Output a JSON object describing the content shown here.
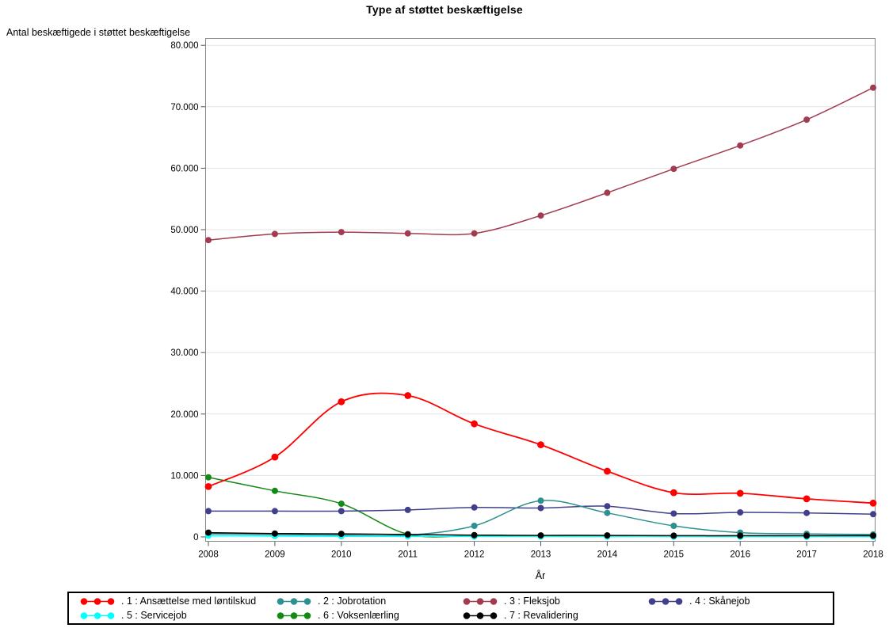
{
  "page": {
    "title": "Type af støttet beskæftigelse"
  },
  "axes": {
    "y_label": "Antal beskæftigede i støttet beskæftigelse",
    "x_label": "År",
    "y_ticks": [
      {
        "value": 0,
        "label": "0"
      },
      {
        "value": 10000,
        "label": "10.000"
      },
      {
        "value": 20000,
        "label": "20.000"
      },
      {
        "value": 30000,
        "label": "30.000"
      },
      {
        "value": 40000,
        "label": "40.000"
      },
      {
        "value": 50000,
        "label": "50.000"
      },
      {
        "value": 60000,
        "label": "60.000"
      },
      {
        "value": 70000,
        "label": "70.000"
      },
      {
        "value": 80000,
        "label": "80.000"
      }
    ],
    "x_ticks": [
      "2008",
      "2009",
      "2010",
      "2011",
      "2012",
      "2013",
      "2014",
      "2015",
      "2016",
      "2017",
      "2018"
    ]
  },
  "chart_data": {
    "type": "line",
    "title": "Type af støttet beskæftigelse",
    "xlabel": "År",
    "ylabel": "Antal beskæftigede i støttet beskæftigelse",
    "x": [
      2008,
      2009,
      2010,
      2011,
      2012,
      2013,
      2014,
      2015,
      2016,
      2017,
      2018
    ],
    "ylim": [
      0,
      80000
    ],
    "grid": true,
    "legend_position": "bottom",
    "marker": "filled-circle",
    "smooth": true,
    "series": [
      {
        "name": ". 1 : Ansættelse med løntilskud",
        "color": "#FF0000",
        "values": [
          8200,
          13000,
          22000,
          23000,
          18400,
          15000,
          10700,
          7200,
          7100,
          6200,
          5500
        ]
      },
      {
        "name": ". 2 : Jobrotation",
        "color": "#2F9090",
        "values": [
          500,
          400,
          300,
          300,
          1800,
          5900,
          3900,
          1800,
          700,
          500,
          400
        ]
      },
      {
        "name": ". 3 : Fleksjob",
        "color": "#A23B50",
        "values": [
          48300,
          49300,
          49600,
          49400,
          49400,
          52300,
          56000,
          59900,
          63700,
          67900,
          73100
        ]
      },
      {
        "name": ". 4 : Skånejob",
        "color": "#40408C",
        "values": [
          4200,
          4200,
          4200,
          4400,
          4800,
          4700,
          5000,
          3800,
          4000,
          3900,
          3700
        ]
      },
      {
        "name": ". 5 : Servicejob",
        "color": "#00FFFF",
        "values": [
          200,
          150,
          120,
          100,
          80,
          60,
          50,
          50,
          40,
          40,
          40
        ]
      },
      {
        "name": ". 6 : Voksenlærling",
        "color": "#148A14",
        "values": [
          9700,
          7500,
          5400,
          450,
          200,
          150,
          200,
          150,
          150,
          150,
          150
        ]
      },
      {
        "name": ". 7 : Revalidering",
        "color": "#000000",
        "values": [
          700,
          550,
          500,
          400,
          300,
          250,
          250,
          200,
          200,
          200,
          200
        ]
      }
    ]
  }
}
